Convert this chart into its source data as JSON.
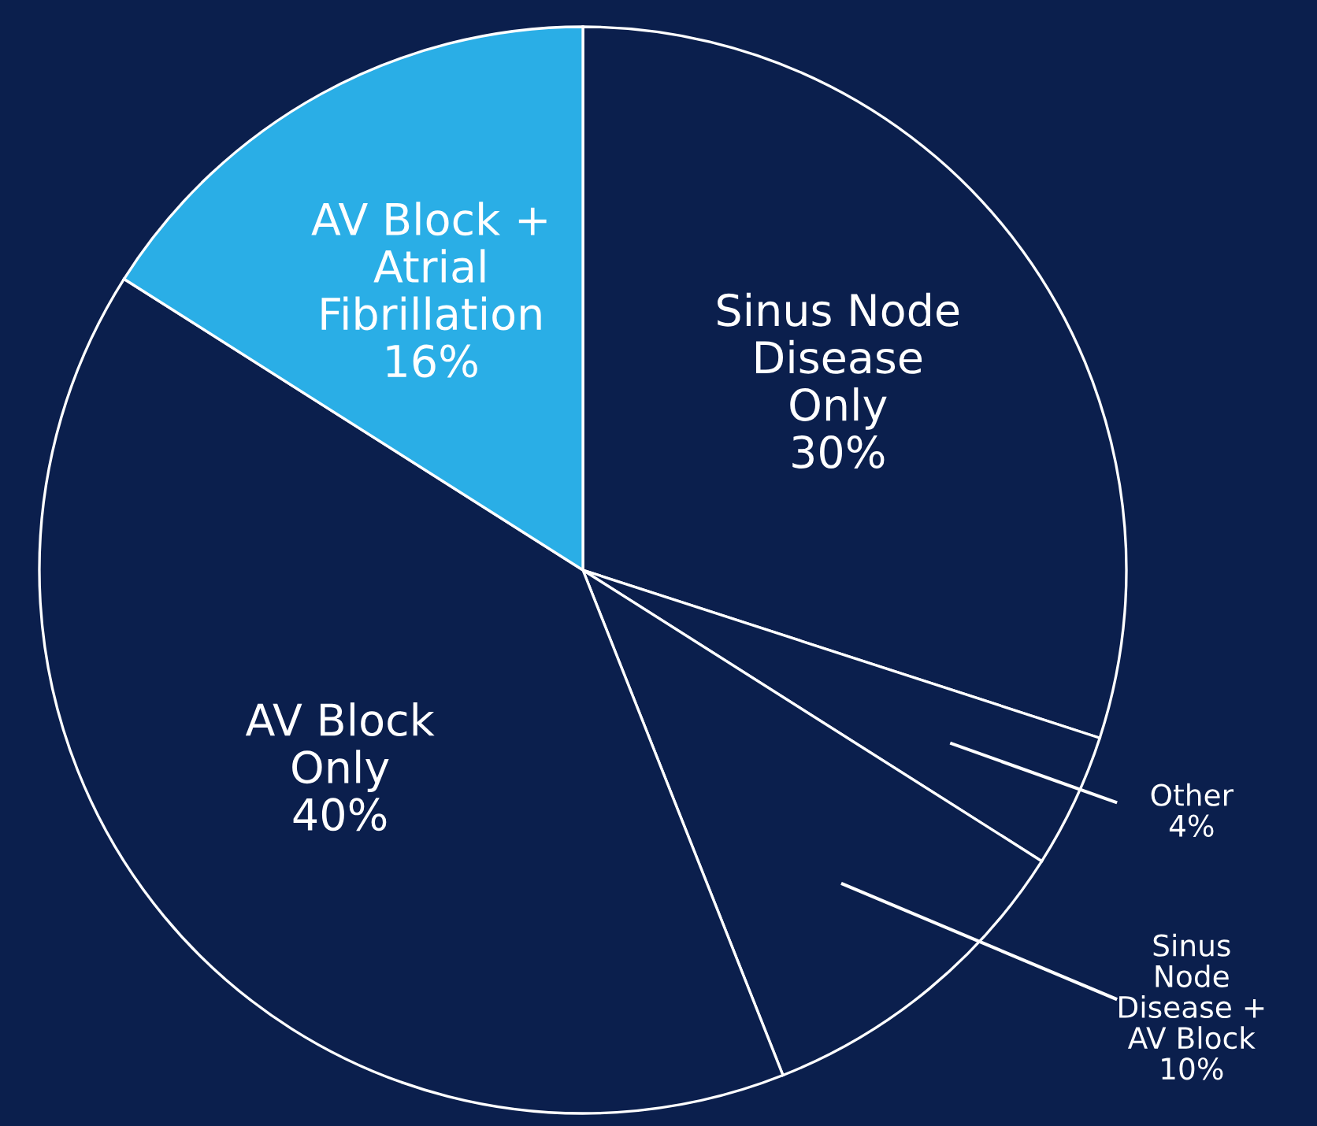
{
  "chart_data": {
    "type": "pie",
    "categories": [
      "Sinus Node\nDisease\nOnly",
      "Other",
      "Sinus\nNode\nDisease +\nAV Block",
      "AV Block\nOnly",
      "AV Block +\nAtrial\nFibrillation"
    ],
    "values": [
      30,
      4,
      10,
      40,
      16
    ],
    "value_labels": [
      "30%",
      "4%",
      "10%",
      "40%",
      "16%"
    ],
    "colors": [
      "#0b1f4d",
      "#0b1f4d",
      "#0b1f4d",
      "#0b1f4d",
      "#2aaee6"
    ]
  }
}
